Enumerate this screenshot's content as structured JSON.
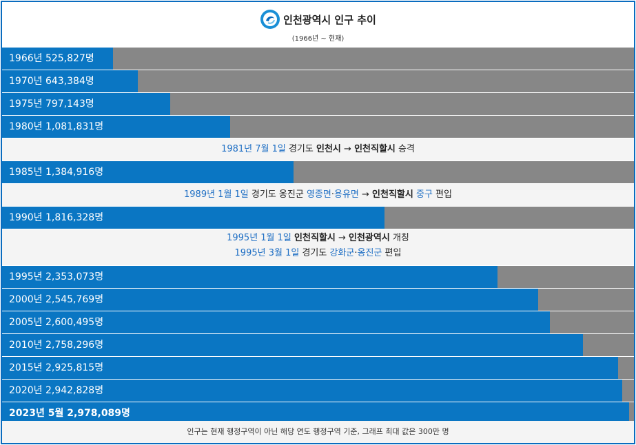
{
  "title": "인천광역시 인구 추이",
  "subtitle": "(1966년 ~ 현재)",
  "footer": "인구는 현재 행정구역이 아닌 해당 연도 행정구역 기준, 그래프 최대 값은 300만 명",
  "colors": {
    "bar": "#0a76c3",
    "track": "#878787",
    "border": "#0a6cbf",
    "link": "#1f6fc4"
  },
  "chart_data": {
    "type": "bar",
    "orientation": "horizontal",
    "title": "인천광역시 인구 추이",
    "subtitle": "(1966년 ~ 현재)",
    "xlim": [
      0,
      3000000
    ],
    "categories": [
      "1966년",
      "1970년",
      "1975년",
      "1980년",
      "1985년",
      "1990년",
      "1995년",
      "2000년",
      "2005년",
      "2010년",
      "2015년",
      "2020년",
      "2023년 5월"
    ],
    "values": [
      525827,
      643384,
      797143,
      1081831,
      1384916,
      1816328,
      2353073,
      2545769,
      2600495,
      2758296,
      2925815,
      2942828,
      2978089
    ],
    "labels": [
      "1966년 525,827명",
      "1970년 643,384명",
      "1975년 797,143명",
      "1980년 1,081,831명",
      "1985년 1,384,916명",
      "1990년 1,816,328명",
      "1995년 2,353,073명",
      "2000년 2,545,769명",
      "2005년 2,600,495명",
      "2010년 2,758,296명",
      "2015년 2,925,815명",
      "2020년 2,942,828명",
      "2023년 5월 2,978,089명"
    ]
  },
  "events": {
    "e1981": {
      "date": "1981년 7월 1일",
      "t1": " 경기도 ",
      "s1": "인천시",
      "arrow": " → ",
      "s2": "인천직할시",
      "t2": " 승격"
    },
    "e1989": {
      "date": "1989년 1월 1일",
      "t1": " 경기도 옹진군 ",
      "b1": "영종면",
      "dot": "·",
      "b2": "용유면",
      "arrow": " → ",
      "s1": "인천직할시",
      "sp": " ",
      "b3": "중구",
      "t2": " 편입"
    },
    "e1995a": {
      "date": "1995년 1월 1일",
      "sp": " ",
      "s1": "인천직할시",
      "arrow": " → ",
      "s2": "인천광역시",
      "t2": " 개칭"
    },
    "e1995b": {
      "date": "1995년 3월 1일",
      "t1": " 경기도 ",
      "b1": "강화군",
      "dot": "·",
      "b2": "옹진군",
      "t2": " 편입"
    }
  }
}
